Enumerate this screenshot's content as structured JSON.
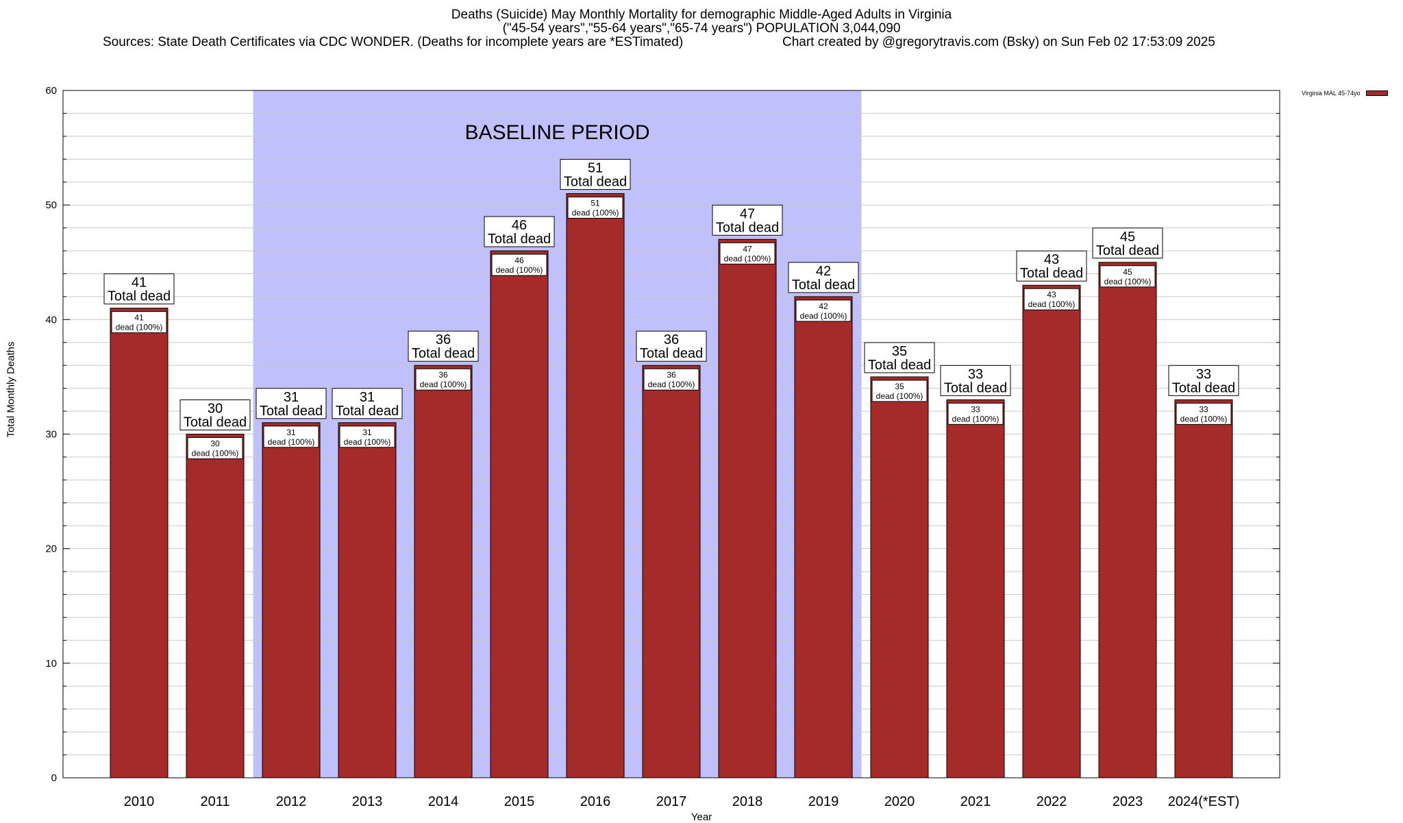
{
  "header": {
    "title_line1": "Deaths (Suicide) May Monthly Mortality for demographic Middle-Aged Adults in Virginia",
    "title_line2": "(\"45-54 years\",\"55-64 years\",\"65-74 years\") POPULATION 3,044,090",
    "sources": "Sources: State Death Certificates via CDC WONDER. (Deaths for incomplete years are *ESTimated)",
    "credit": "Chart created by @gregorytravis.com (Bsky) on Sun Feb 02 17:53:09 2025"
  },
  "legend": {
    "label": "Virginia MAL 45-74yo"
  },
  "colors": {
    "bar": "#a52a2a",
    "baseline_band": "#c0c0fc",
    "grid": "#c8c8c8"
  },
  "chart_data": {
    "type": "bar",
    "title": "Deaths (Suicide) May Monthly Mortality for demographic Middle-Aged Adults in Virginia",
    "xlabel": "Year",
    "ylabel": "Total Monthly Deaths",
    "ylim": [
      0,
      60
    ],
    "yticks": [
      0,
      10,
      20,
      30,
      40,
      50,
      60
    ],
    "grid": true,
    "legend_position": "top-right",
    "categories": [
      "2010",
      "2011",
      "2012",
      "2013",
      "2014",
      "2015",
      "2016",
      "2017",
      "2018",
      "2019",
      "2020",
      "2021",
      "2022",
      "2023",
      "2024(*EST)"
    ],
    "series": [
      {
        "name": "Virginia MAL 45-74yo",
        "values": [
          41,
          30,
          31,
          31,
          36,
          46,
          51,
          36,
          47,
          42,
          35,
          33,
          43,
          45,
          33
        ],
        "share_labels": [
          "100%",
          "100%",
          "100%",
          "100%",
          "100%",
          "100%",
          "100%",
          "100%",
          "100%",
          "100%",
          "100%",
          "100%",
          "100%",
          "100%",
          "100%"
        ]
      }
    ],
    "total_label_text": "Total dead",
    "inner_label_text": "dead",
    "baseline_band": {
      "label": "BASELINE PERIOD",
      "from": "2012",
      "to": "2019"
    }
  }
}
